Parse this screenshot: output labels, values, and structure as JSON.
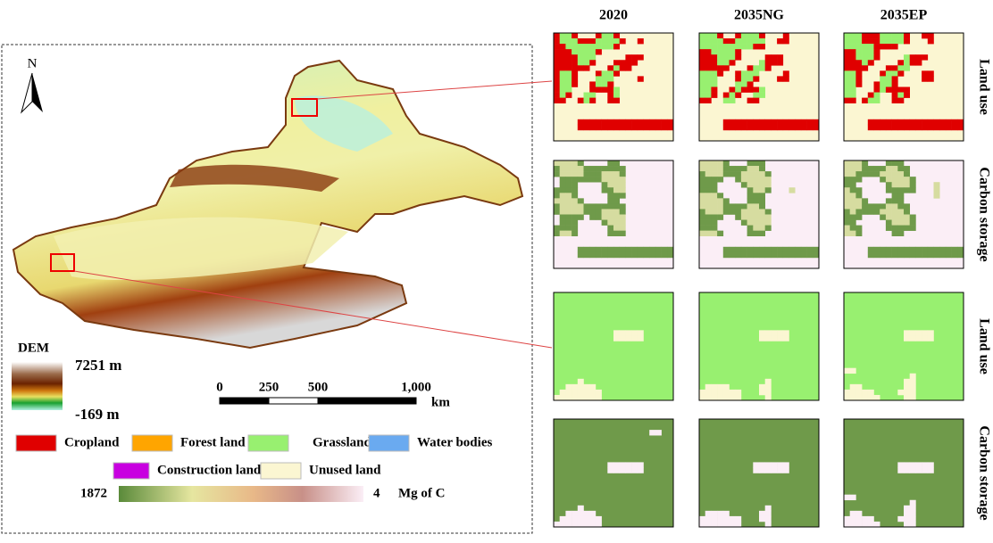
{
  "columns": [
    "2020",
    "2035NG",
    "2035EP"
  ],
  "rows": [
    "Land use",
    "Carbon storage",
    "Land use",
    "Carbon storage"
  ],
  "north": "N",
  "dem": {
    "title": "DEM",
    "max": "7251 m",
    "min": "-169 m"
  },
  "scale_bar": {
    "ticks": [
      0,
      250,
      500,
      {
        "value": 1000,
        "label": "1,000"
      }
    ],
    "unit": "km"
  },
  "land_use_legend": [
    {
      "name": "Cropland",
      "color": "#e00000"
    },
    {
      "name": "Forest land",
      "color": "#ffa500"
    },
    {
      "name": "Grassland",
      "color": "#98f070"
    },
    {
      "name": "Water bodies",
      "color": "#6aaaf0"
    },
    {
      "name": "Construction land",
      "color": "#c800e0"
    },
    {
      "name": "Unused land",
      "color": "#fbf6d2"
    }
  ],
  "carbon_legend": {
    "max": "1872",
    "min": "4",
    "unit": "Mg of C"
  }
}
